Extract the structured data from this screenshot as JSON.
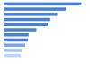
{
  "chart_data": {
    "type": "bar",
    "orientation": "horizontal",
    "categories": [
      null,
      null,
      null,
      null,
      null,
      null,
      null,
      null,
      null,
      null,
      null
    ],
    "values": [
      90,
      72,
      62,
      54,
      51,
      38,
      29,
      28,
      25,
      21,
      20
    ],
    "colors": [
      "#4a7fd6",
      "#4a7fd6",
      "#4a7fd6",
      "#4a7fd6",
      "#4a7fd6",
      "#4a7fd6",
      "#4a7fd6",
      "#4a7fd6",
      "#7fa3e3",
      "#a9c0ec",
      "#c3d3f1"
    ],
    "xlim": [
      0,
      100
    ],
    "tick_labels": false,
    "grid": false
  }
}
